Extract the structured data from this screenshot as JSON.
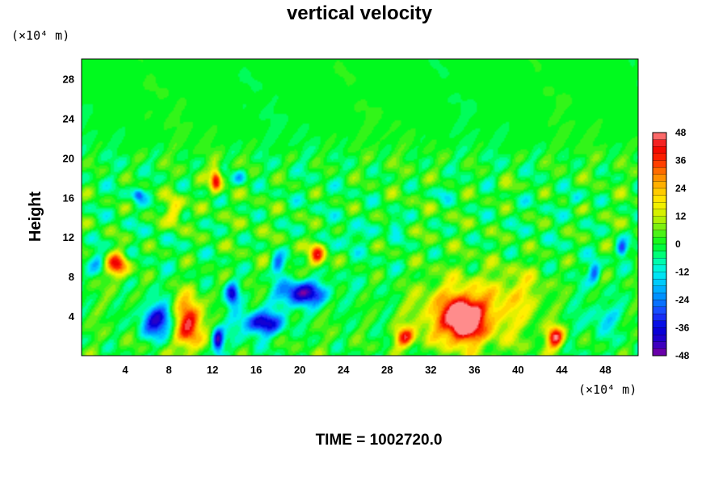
{
  "chart_data": {
    "type": "heatmap",
    "title": "vertical velocity",
    "ylabel": "Height",
    "x_unit_label": "(×10⁴ m)",
    "y_unit_label": "(×10⁴ m)",
    "footer": "TIME = 1002720.0",
    "xlim": [
      0,
      51
    ],
    "ylim": [
      0,
      30
    ],
    "x_ticks": [
      4,
      8,
      12,
      16,
      20,
      24,
      28,
      32,
      36,
      40,
      44,
      48
    ],
    "y_ticks": [
      4,
      8,
      12,
      16,
      20,
      24,
      28
    ],
    "colorbar": {
      "min": -48,
      "max": 48,
      "ticks": [
        48,
        36,
        24,
        12,
        0,
        -12,
        -24,
        -36,
        -48
      ]
    },
    "features": [
      {
        "x": 3.3,
        "y": 9.2,
        "rx": 1.0,
        "ry": 1.3,
        "value": 38
      },
      {
        "x": 7.0,
        "y": 3.5,
        "rx": 1.6,
        "ry": 1.6,
        "value": -38
      },
      {
        "x": 9.8,
        "y": 3.3,
        "rx": 1.3,
        "ry": 2.8,
        "value": 48
      },
      {
        "x": 12.3,
        "y": 17.8,
        "rx": 0.5,
        "ry": 1.2,
        "value": 40
      },
      {
        "x": 12.5,
        "y": 1.5,
        "rx": 0.5,
        "ry": 1.2,
        "value": -44
      },
      {
        "x": 13.8,
        "y": 6.2,
        "rx": 0.6,
        "ry": 1.2,
        "value": -36
      },
      {
        "x": 16.6,
        "y": 3.3,
        "rx": 2.0,
        "ry": 1.2,
        "value": -40
      },
      {
        "x": 20.2,
        "y": 6.3,
        "rx": 2.2,
        "ry": 1.3,
        "value": -44
      },
      {
        "x": 21.6,
        "y": 10.2,
        "rx": 0.7,
        "ry": 1.3,
        "value": 38
      },
      {
        "x": 18.0,
        "y": 9.2,
        "rx": 0.6,
        "ry": 1.0,
        "value": -28
      },
      {
        "x": 8.5,
        "y": 14.6,
        "rx": 0.8,
        "ry": 1.6,
        "value": 24
      },
      {
        "x": 5.2,
        "y": 16.3,
        "rx": 0.5,
        "ry": 0.6,
        "value": -24
      },
      {
        "x": 34.8,
        "y": 4.0,
        "rx": 4.3,
        "ry": 3.3,
        "value": 32
      },
      {
        "x": 35.0,
        "y": 3.6,
        "rx": 1.4,
        "ry": 1.9,
        "value": 46
      },
      {
        "x": 29.6,
        "y": 1.8,
        "rx": 0.9,
        "ry": 1.0,
        "value": 36
      },
      {
        "x": 43.4,
        "y": 1.8,
        "rx": 0.8,
        "ry": 1.1,
        "value": 44
      },
      {
        "x": 47.8,
        "y": 3.8,
        "rx": 1.5,
        "ry": 1.3,
        "value": -12
      },
      {
        "x": 47.0,
        "y": 8.5,
        "rx": 0.5,
        "ry": 1.0,
        "value": -28
      },
      {
        "x": 49.5,
        "y": 10.8,
        "rx": 0.5,
        "ry": 0.8,
        "value": -34
      },
      {
        "x": 28.6,
        "y": 13.2,
        "rx": 0.6,
        "ry": 0.8,
        "value": -20
      },
      {
        "x": 45.3,
        "y": 15.8,
        "rx": 0.7,
        "ry": 0.7,
        "value": -14
      },
      {
        "x": 33.0,
        "y": 16.5,
        "rx": 0.8,
        "ry": 0.8,
        "value": -12
      },
      {
        "x": 39.0,
        "y": 17.0,
        "rx": 1.0,
        "ry": 0.8,
        "value": 10
      },
      {
        "x": 1.5,
        "y": 9.5,
        "rx": 0.8,
        "ry": 1.2,
        "value": -16
      },
      {
        "x": 24.5,
        "y": 12.0,
        "rx": 1.2,
        "ry": 1.0,
        "value": -10
      },
      {
        "x": 14.5,
        "y": 18.0,
        "rx": 0.6,
        "ry": 0.8,
        "value": -18
      },
      {
        "x": 40.5,
        "y": 6.5,
        "rx": 2.5,
        "ry": 3.0,
        "value": 12
      }
    ]
  }
}
